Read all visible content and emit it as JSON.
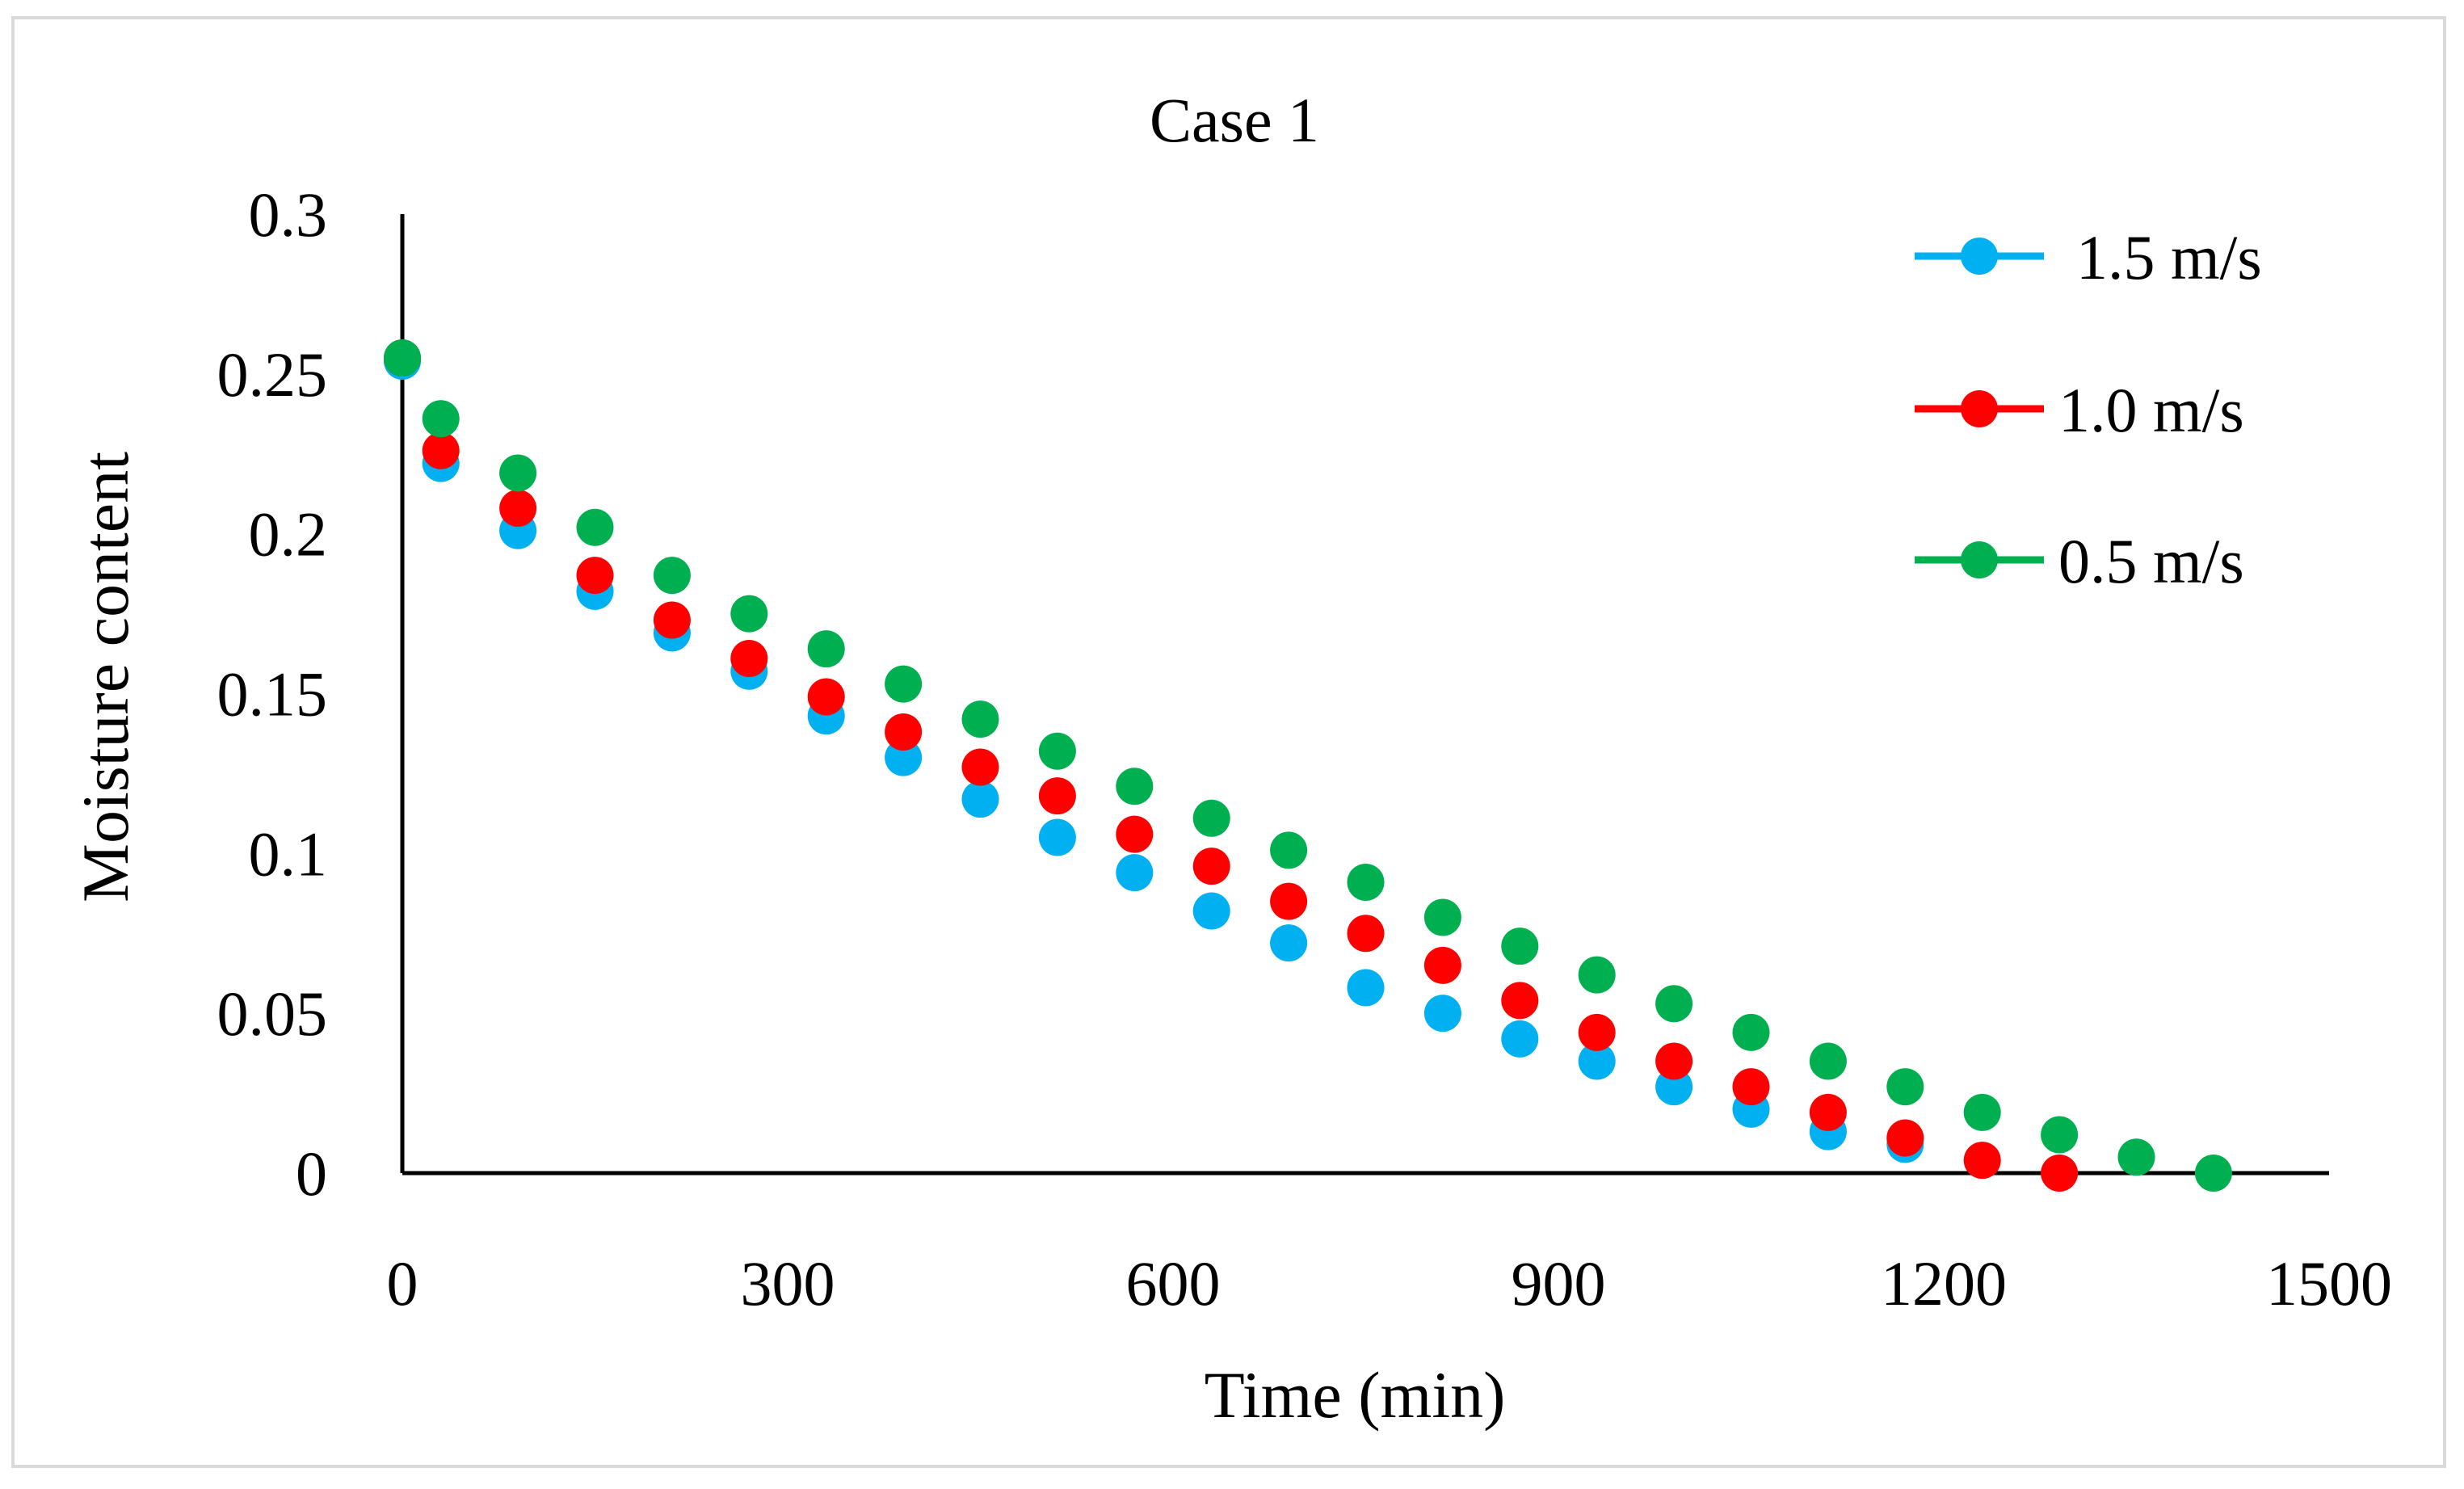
{
  "chart_data": {
    "type": "scatter",
    "title": "Case 1",
    "xlabel": "Time (min)",
    "ylabel": "Moisture content",
    "xlim": [
      0,
      1500
    ],
    "ylim": [
      0,
      0.3
    ],
    "xticks": [
      0,
      300,
      600,
      900,
      1200,
      1500
    ],
    "xtick_labels": [
      "0",
      "300",
      "600",
      "900",
      "1200",
      "1500"
    ],
    "yticks": [
      0,
      0.05,
      0.1,
      0.15,
      0.2,
      0.25,
      0.3
    ],
    "ytick_labels": [
      "0",
      "0.05",
      "0.1",
      "0.15",
      "0.2",
      "0.25",
      "0.3"
    ],
    "grid": false,
    "legend_position": "top-right",
    "series": [
      {
        "name": "1.5 m/s",
        "color": "#00b0f0",
        "x": [
          0,
          30,
          90,
          150,
          210,
          270,
          330,
          390,
          450,
          510,
          570,
          630,
          690,
          750,
          810,
          870,
          930,
          990,
          1050,
          1110,
          1170
        ],
        "y": [
          0.254,
          0.222,
          0.201,
          0.182,
          0.169,
          0.157,
          0.143,
          0.13,
          0.117,
          0.105,
          0.094,
          0.082,
          0.072,
          0.058,
          0.05,
          0.042,
          0.035,
          0.027,
          0.02,
          0.013,
          0.009
        ]
      },
      {
        "name": "1.0 m/s",
        "color": "#ff0000",
        "x": [
          0,
          30,
          90,
          150,
          210,
          270,
          330,
          390,
          450,
          510,
          570,
          630,
          690,
          750,
          810,
          870,
          930,
          990,
          1050,
          1110,
          1170,
          1230,
          1290
        ],
        "y": [
          0.255,
          0.226,
          0.208,
          0.187,
          0.173,
          0.161,
          0.149,
          0.138,
          0.127,
          0.118,
          0.106,
          0.096,
          0.085,
          0.075,
          0.065,
          0.054,
          0.044,
          0.035,
          0.027,
          0.019,
          0.011,
          0.004,
          0.0
        ]
      },
      {
        "name": "0.5 m/s",
        "color": "#00b050",
        "x": [
          0,
          30,
          90,
          150,
          210,
          270,
          330,
          390,
          450,
          510,
          570,
          630,
          690,
          750,
          810,
          870,
          930,
          990,
          1050,
          1110,
          1170,
          1230,
          1290,
          1350,
          1410
        ],
        "y": [
          0.255,
          0.236,
          0.219,
          0.202,
          0.187,
          0.175,
          0.164,
          0.153,
          0.142,
          0.132,
          0.121,
          0.111,
          0.101,
          0.091,
          0.08,
          0.071,
          0.062,
          0.053,
          0.044,
          0.035,
          0.027,
          0.019,
          0.012,
          0.005,
          0.0
        ]
      }
    ]
  }
}
